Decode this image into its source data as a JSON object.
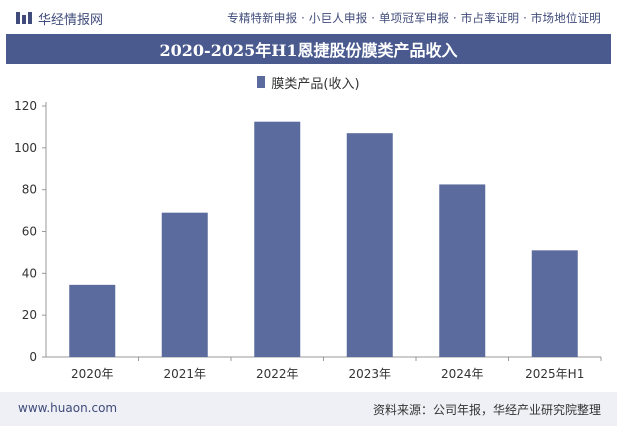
{
  "header": {
    "brand": "华经情报网",
    "tagline": "专精特新申报 · 小巨人申报 · 单项冠军申报 · 市占率证明 · 市场地位证明"
  },
  "title": "2020-2025年H1恩捷股份膜类产品收入",
  "footer": {
    "website": "www.huaon.com",
    "source": "资料来源：公司年报，华经产业研究院整理"
  },
  "colors": {
    "bar": "#5b6b9e",
    "title_bg": "#4a5a8e"
  },
  "chart_data": {
    "type": "bar",
    "title": "2020-2025年H1恩捷股份膜类产品收入",
    "categories": [
      "2020年",
      "2021年",
      "2022年",
      "2023年",
      "2024年",
      "2025年H1"
    ],
    "series": [
      {
        "name": "膜类产品(收入)",
        "values": [
          34.5,
          69,
          112.5,
          107,
          82.5,
          51
        ]
      }
    ],
    "ylim": [
      0,
      120
    ],
    "yticks": [
      0,
      20,
      40,
      60,
      80,
      100,
      120
    ],
    "grid": false,
    "legend": "top-center"
  }
}
